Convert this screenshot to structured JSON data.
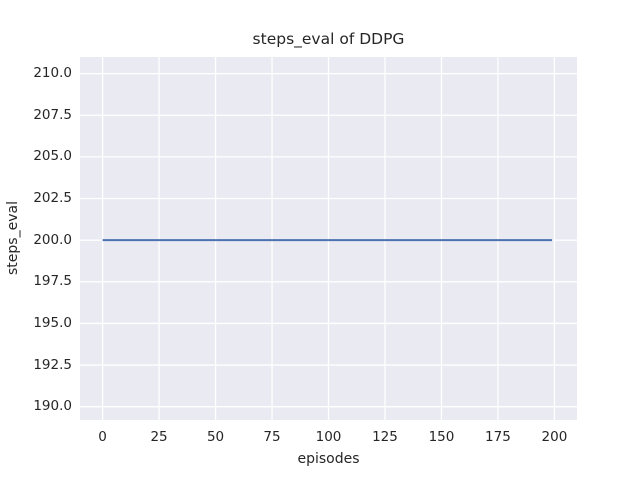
{
  "figure": {
    "title": "steps_eval of DDPG",
    "xlabel": "episodes",
    "ylabel": "steps_eval"
  },
  "chart_data": {
    "type": "line",
    "title": "steps_eval of DDPG",
    "xlabel": "episodes",
    "ylabel": "steps_eval",
    "series": [
      {
        "name": "steps_eval",
        "x": [
          0,
          199
        ],
        "y": [
          200,
          200
        ],
        "color": "#4c72b0",
        "note": "constant value 200 for all episodes from 0 to 199"
      }
    ],
    "xlim": [
      -10,
      210
    ],
    "ylim": [
      189.2,
      211.0
    ],
    "x_ticks": [
      0,
      25,
      50,
      75,
      100,
      125,
      150,
      175,
      200
    ],
    "x_tick_labels": [
      "0",
      "25",
      "50",
      "75",
      "100",
      "125",
      "150",
      "175",
      "200"
    ],
    "y_ticks": [
      190.0,
      192.5,
      195.0,
      197.5,
      200.0,
      202.5,
      205.0,
      207.5,
      210.0
    ],
    "y_tick_labels": [
      "190.0",
      "192.5",
      "195.0",
      "197.5",
      "200.0",
      "202.5",
      "205.0",
      "207.5",
      "210.0"
    ],
    "grid": true,
    "legend": "none",
    "style": {
      "figure_bg": "#ffffff",
      "plot_bg": "#eaeaf2",
      "grid_color": "#ffffff",
      "line_color": "#4c72b0",
      "text_color": "#262626",
      "line_width": 2,
      "grid_width": 1.3
    }
  }
}
